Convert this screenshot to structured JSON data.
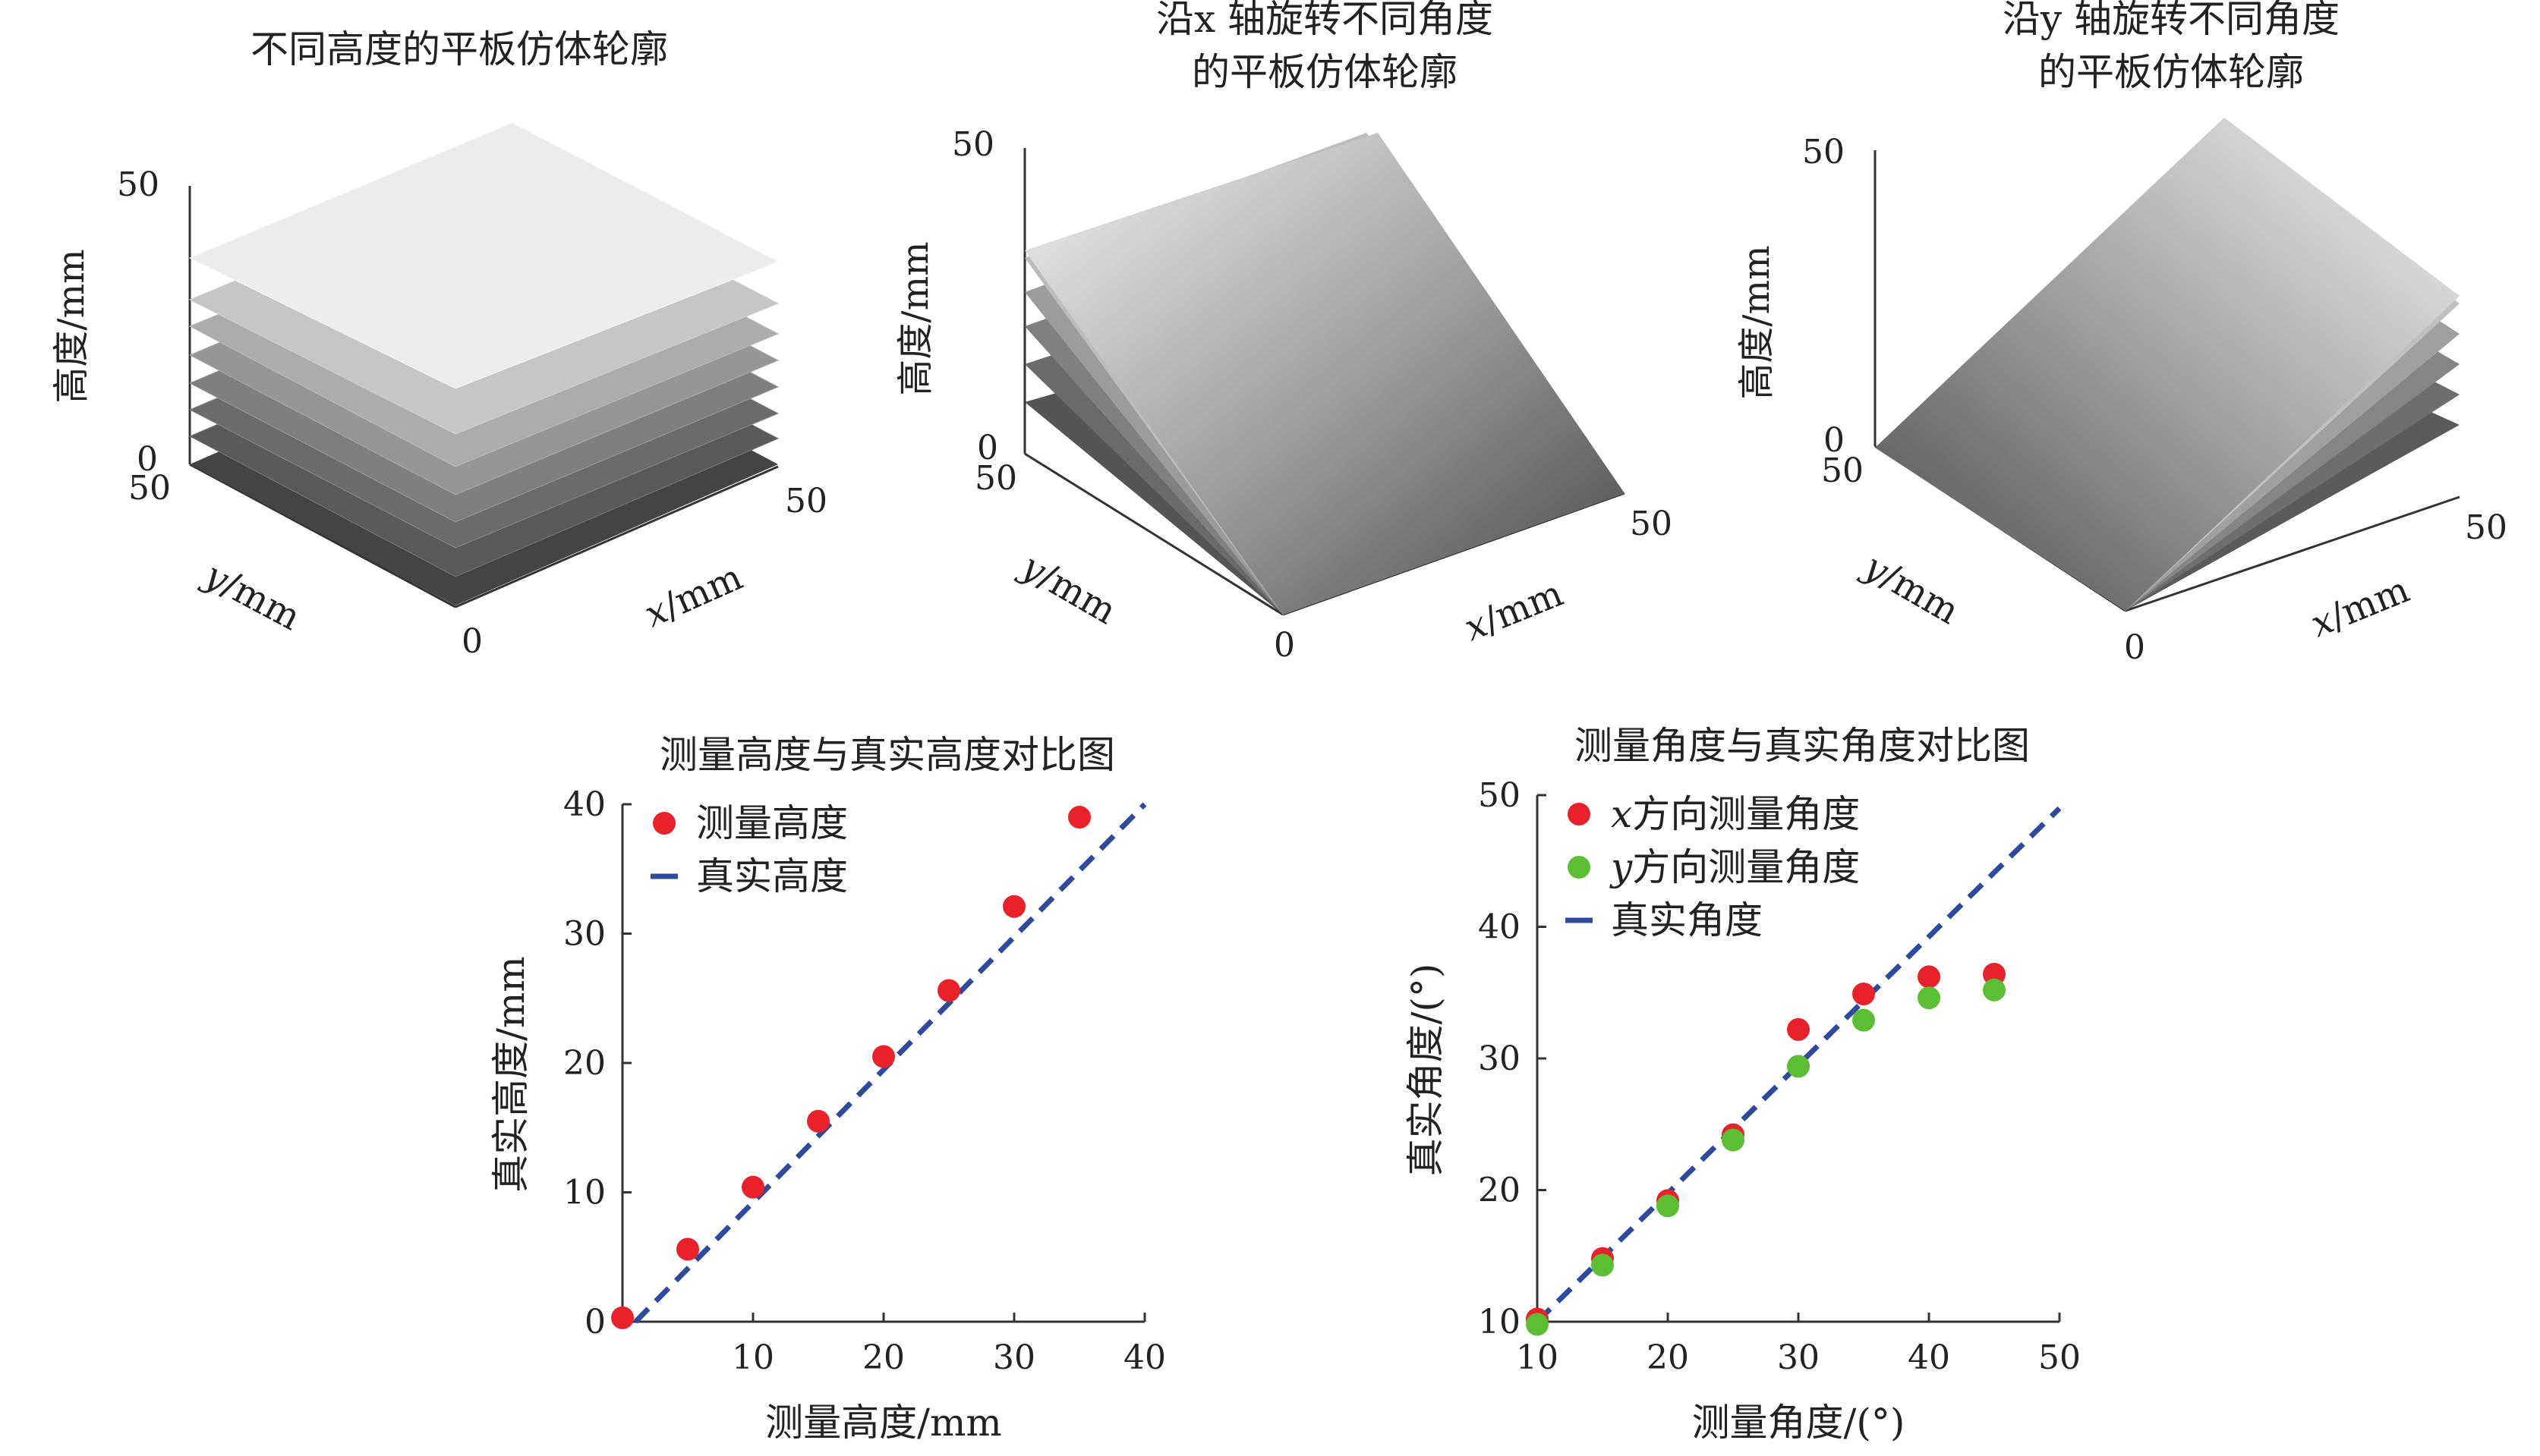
{
  "figure": {
    "surface_panels": [
      {
        "title_lines": [
          "不同高度的平板仿体轮廓"
        ],
        "z_label": "高度/mm",
        "z_ticks": [
          "0",
          "50"
        ],
        "y_label_var": "y",
        "y_label_unit": "/mm",
        "y_ticks": [
          "50"
        ],
        "x_label_var": "x",
        "x_label_unit": "/mm",
        "x_ticks": [
          "0",
          "50"
        ]
      },
      {
        "title_lines": [
          "沿x 轴旋转不同角度",
          "的平板仿体轮廓"
        ],
        "z_label": "高度/mm",
        "z_ticks": [
          "0",
          "50"
        ],
        "y_label_var": "y",
        "y_label_unit": "/mm",
        "y_ticks": [
          "50"
        ],
        "x_label_var": "x",
        "x_label_unit": "/mm",
        "x_ticks": [
          "0",
          "50"
        ]
      },
      {
        "title_lines": [
          "沿y 轴旋转不同角度",
          "的平板仿体轮廓"
        ],
        "z_label": "高度/mm",
        "z_ticks": [
          "0",
          "50"
        ],
        "y_label_var": "y",
        "y_label_unit": "/mm",
        "y_ticks": [
          "50"
        ],
        "x_label_var": "x",
        "x_label_unit": "/mm",
        "x_ticks": [
          "0",
          "50"
        ]
      }
    ]
  },
  "chart_data": [
    {
      "type": "scatter",
      "title": "测量高度与真实高度对比图",
      "xlabel": "测量高度/mm",
      "ylabel": "真实高度/mm",
      "xlim": [
        0,
        40
      ],
      "ylim": [
        0,
        40
      ],
      "x_ticks": [
        10,
        20,
        30,
        40
      ],
      "y_ticks": [
        0,
        10,
        20,
        30,
        40
      ],
      "legend_position": "top-left",
      "series": [
        {
          "name": "测量高度",
          "kind": "points",
          "color": "#e8212b",
          "x": [
            0,
            5,
            10,
            15,
            20,
            25,
            30,
            35
          ],
          "y": [
            0.3,
            5.6,
            10.4,
            15.5,
            20.5,
            25.6,
            32.1,
            39.0
          ]
        },
        {
          "name": "真实高度",
          "kind": "dashed-line",
          "color": "#2e4a9e",
          "x": [
            1,
            40
          ],
          "y": [
            0,
            40
          ]
        }
      ]
    },
    {
      "type": "scatter",
      "title": "测量角度与真实角度对比图",
      "xlabel": "测量角度/(°)",
      "ylabel": "真实角度/(°)",
      "xlim": [
        10,
        50
      ],
      "ylim": [
        10,
        50
      ],
      "x_ticks": [
        10,
        20,
        30,
        40,
        50
      ],
      "y_ticks": [
        10,
        20,
        30,
        40,
        50
      ],
      "legend_position": "top-left",
      "series": [
        {
          "name": "x方向测量角度",
          "kind": "points",
          "color": "#e8212b",
          "x": [
            10,
            15,
            20,
            25,
            30,
            35,
            40,
            45
          ],
          "y": [
            10.2,
            14.8,
            19.2,
            24.2,
            32.2,
            34.9,
            36.2,
            36.4
          ]
        },
        {
          "name": "y方向测量角度",
          "kind": "points",
          "color": "#5bbf33",
          "x": [
            10,
            15,
            20,
            25,
            30,
            35,
            40,
            45
          ],
          "y": [
            9.8,
            14.3,
            18.8,
            23.8,
            29.4,
            32.9,
            34.6,
            35.2
          ]
        },
        {
          "name": "真实角度",
          "kind": "dashed-line",
          "color": "#2e4a9e",
          "x": [
            10,
            50
          ],
          "y": [
            10,
            49
          ]
        }
      ]
    }
  ]
}
